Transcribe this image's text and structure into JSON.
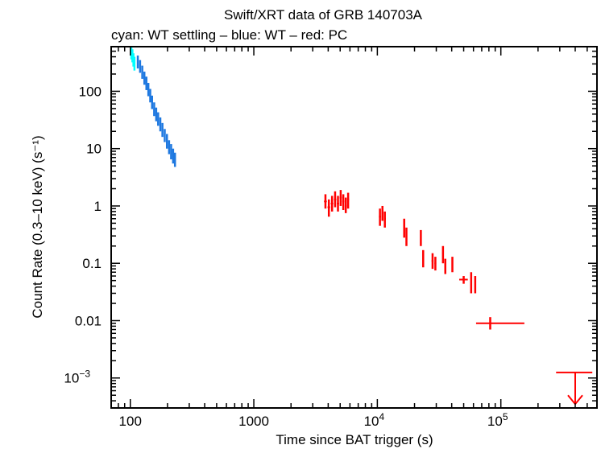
{
  "chart_data": {
    "type": "scatter",
    "title": "Swift/XRT data of GRB 140703A",
    "subtitle": "cyan: WT settling – blue: WT – red: PC",
    "xlabel": "Time since BAT trigger (s)",
    "ylabel": "Count Rate (0.3–10 keV) (s⁻¹)",
    "xscale": "log",
    "yscale": "log",
    "xlim": [
      70,
      600000
    ],
    "ylim": [
      0.0003,
      600
    ],
    "xticks": [
      {
        "value": 100,
        "label": "100",
        "sup": ""
      },
      {
        "value": 1000,
        "label": "1000",
        "sup": ""
      },
      {
        "value": 10000,
        "label": "10",
        "sup": "4"
      },
      {
        "value": 100000,
        "label": "10",
        "sup": "5"
      }
    ],
    "yticks": [
      {
        "value": 0.001,
        "label": "10",
        "sup": "−3"
      },
      {
        "value": 0.01,
        "label": "0.01",
        "sup": ""
      },
      {
        "value": 0.1,
        "label": "0.1",
        "sup": ""
      },
      {
        "value": 1,
        "label": "1",
        "sup": ""
      },
      {
        "value": 10,
        "label": "10",
        "sup": ""
      },
      {
        "value": 100,
        "label": "100",
        "sup": ""
      }
    ],
    "colors": {
      "wt_settling": "#00ffff",
      "wt": "#1e78e0",
      "pc": "#ff0000",
      "axes": "#000000"
    },
    "series": [
      {
        "mode": "WT settling",
        "points": [
          {
            "x": 102,
            "y": 480,
            "ylo": 360,
            "yhi": 600
          },
          {
            "x": 104,
            "y": 420,
            "ylo": 320,
            "yhi": 540
          },
          {
            "x": 106,
            "y": 360,
            "ylo": 270,
            "yhi": 460
          },
          {
            "x": 108,
            "y": 300,
            "ylo": 230,
            "yhi": 400
          }
        ]
      },
      {
        "mode": "WT",
        "points": [
          {
            "x": 115,
            "y": 330,
            "ylo": 250,
            "yhi": 420
          },
          {
            "x": 120,
            "y": 280,
            "ylo": 210,
            "yhi": 350
          },
          {
            "x": 125,
            "y": 220,
            "ylo": 165,
            "yhi": 280
          },
          {
            "x": 130,
            "y": 175,
            "ylo": 130,
            "yhi": 220
          },
          {
            "x": 135,
            "y": 140,
            "ylo": 105,
            "yhi": 180
          },
          {
            "x": 140,
            "y": 110,
            "ylo": 82,
            "yhi": 140
          },
          {
            "x": 145,
            "y": 85,
            "ylo": 64,
            "yhi": 110
          },
          {
            "x": 150,
            "y": 65,
            "ylo": 49,
            "yhi": 84
          },
          {
            "x": 156,
            "y": 50,
            "ylo": 37,
            "yhi": 64
          },
          {
            "x": 162,
            "y": 40,
            "ylo": 30,
            "yhi": 52
          },
          {
            "x": 168,
            "y": 33,
            "ylo": 25,
            "yhi": 43
          },
          {
            "x": 175,
            "y": 27,
            "ylo": 20,
            "yhi": 35
          },
          {
            "x": 182,
            "y": 22,
            "ylo": 16,
            "yhi": 28
          },
          {
            "x": 190,
            "y": 17,
            "ylo": 13,
            "yhi": 22
          },
          {
            "x": 198,
            "y": 14,
            "ylo": 10,
            "yhi": 18
          },
          {
            "x": 206,
            "y": 11,
            "ylo": 8,
            "yhi": 14
          },
          {
            "x": 214,
            "y": 9,
            "ylo": 6.5,
            "yhi": 12
          },
          {
            "x": 222,
            "y": 7.5,
            "ylo": 5.5,
            "yhi": 10
          },
          {
            "x": 230,
            "y": 6.5,
            "ylo": 4.8,
            "yhi": 8.5
          }
        ]
      },
      {
        "mode": "PC",
        "points": [
          {
            "x": 3800,
            "y": 1.2,
            "ylo": 0.9,
            "yhi": 1.6,
            "xlo": 3700,
            "xhi": 3900
          },
          {
            "x": 4050,
            "y": 0.95,
            "ylo": 0.65,
            "yhi": 1.3,
            "xlo": 3950,
            "xhi": 4150
          },
          {
            "x": 4300,
            "y": 1.1,
            "ylo": 0.8,
            "yhi": 1.5,
            "xlo": 4200,
            "xhi": 4400
          },
          {
            "x": 4550,
            "y": 1.3,
            "ylo": 0.95,
            "yhi": 1.8,
            "xlo": 4450,
            "xhi": 4650
          },
          {
            "x": 4800,
            "y": 1.1,
            "ylo": 0.8,
            "yhi": 1.5,
            "xlo": 4700,
            "xhi": 4900
          },
          {
            "x": 5050,
            "y": 1.4,
            "ylo": 1.0,
            "yhi": 1.9,
            "xlo": 4950,
            "xhi": 5150
          },
          {
            "x": 5300,
            "y": 1.2,
            "ylo": 0.85,
            "yhi": 1.6,
            "xlo": 5200,
            "xhi": 5400
          },
          {
            "x": 5550,
            "y": 1.0,
            "ylo": 0.75,
            "yhi": 1.4,
            "xlo": 5450,
            "xhi": 5650
          },
          {
            "x": 5800,
            "y": 1.3,
            "ylo": 0.9,
            "yhi": 1.7,
            "xlo": 5700,
            "xhi": 5900
          },
          {
            "x": 10500,
            "y": 0.65,
            "ylo": 0.45,
            "yhi": 0.9,
            "xlo": 10300,
            "xhi": 10700
          },
          {
            "x": 11000,
            "y": 0.75,
            "ylo": 0.55,
            "yhi": 1.0,
            "xlo": 10800,
            "xhi": 11200
          },
          {
            "x": 11500,
            "y": 0.6,
            "ylo": 0.42,
            "yhi": 0.8,
            "xlo": 11300,
            "xhi": 11700
          },
          {
            "x": 16500,
            "y": 0.42,
            "ylo": 0.28,
            "yhi": 0.6,
            "xlo": 16300,
            "xhi": 16700
          },
          {
            "x": 17200,
            "y": 0.3,
            "ylo": 0.2,
            "yhi": 0.42,
            "xlo": 17000,
            "xhi": 17400
          },
          {
            "x": 22500,
            "y": 0.28,
            "ylo": 0.2,
            "yhi": 0.38,
            "xlo": 22200,
            "xhi": 22800
          },
          {
            "x": 23500,
            "y": 0.12,
            "ylo": 0.085,
            "yhi": 0.17,
            "xlo": 23200,
            "xhi": 23800
          },
          {
            "x": 28000,
            "y": 0.11,
            "ylo": 0.08,
            "yhi": 0.15,
            "xlo": 27500,
            "xhi": 28500
          },
          {
            "x": 29500,
            "y": 0.1,
            "ylo": 0.075,
            "yhi": 0.13,
            "xlo": 29000,
            "xhi": 30000
          },
          {
            "x": 34000,
            "y": 0.15,
            "ylo": 0.1,
            "yhi": 0.2,
            "xlo": 33500,
            "xhi": 34500
          },
          {
            "x": 35500,
            "y": 0.09,
            "ylo": 0.065,
            "yhi": 0.12,
            "xlo": 35000,
            "xhi": 36000
          },
          {
            "x": 40500,
            "y": 0.1,
            "ylo": 0.07,
            "yhi": 0.13,
            "xlo": 40000,
            "xhi": 41000
          },
          {
            "x": 50000,
            "y": 0.052,
            "ylo": 0.044,
            "yhi": 0.06,
            "xlo": 46000,
            "xhi": 54000
          },
          {
            "x": 57500,
            "y": 0.05,
            "ylo": 0.03,
            "yhi": 0.07,
            "xlo": 57000,
            "xhi": 58000
          },
          {
            "x": 62000,
            "y": 0.04,
            "ylo": 0.03,
            "yhi": 0.06,
            "xlo": 61500,
            "xhi": 62500
          },
          {
            "x": 82000,
            "y": 0.009,
            "ylo": 0.007,
            "yhi": 0.0115,
            "xlo": 63000,
            "xhi": 155000
          }
        ]
      },
      {
        "mode": "PC upper limit",
        "points": [
          {
            "x": 400000,
            "y": 0.00125,
            "xlo": 280000,
            "xhi": 550000,
            "ylo": 0.00035
          }
        ]
      }
    ]
  }
}
